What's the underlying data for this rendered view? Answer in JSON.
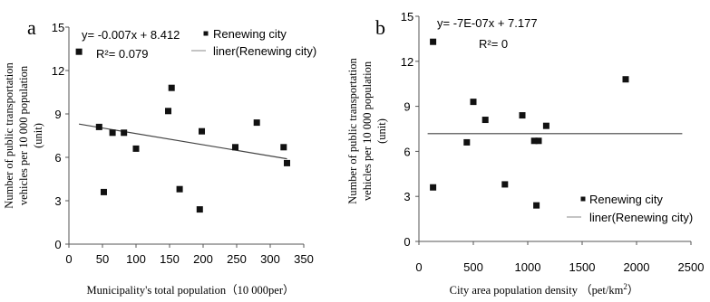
{
  "chart_data": [
    {
      "type": "scatter",
      "panel_label": "a",
      "ylabel_lines": [
        "Number of public transportation",
        "vehicles per 10 000 population",
        "(unit)"
      ],
      "xlabel": "Municipality's total population（10 000per）",
      "xlim": [
        0,
        350
      ],
      "ylim": [
        0,
        15
      ],
      "xticks": [
        0,
        50,
        100,
        150,
        200,
        250,
        300,
        350
      ],
      "yticks": [
        0,
        3,
        6,
        9,
        12,
        15
      ],
      "equation": "y= -0.007x + 8.412",
      "r_squared": "R²= 0.079",
      "series": [
        {
          "name": "Renewing city",
          "points": [
            {
              "x": 15,
              "y": 13.3
            },
            {
              "x": 45,
              "y": 8.1
            },
            {
              "x": 52,
              "y": 3.6
            },
            {
              "x": 65,
              "y": 7.7
            },
            {
              "x": 82,
              "y": 7.7
            },
            {
              "x": 100,
              "y": 6.6
            },
            {
              "x": 148,
              "y": 9.2
            },
            {
              "x": 153,
              "y": 10.8
            },
            {
              "x": 165,
              "y": 3.8
            },
            {
              "x": 195,
              "y": 2.4
            },
            {
              "x": 198,
              "y": 7.8
            },
            {
              "x": 248,
              "y": 6.7
            },
            {
              "x": 280,
              "y": 8.4
            },
            {
              "x": 320,
              "y": 6.7
            },
            {
              "x": 325,
              "y": 5.6
            }
          ]
        },
        {
          "name": "liner(Renewing city)",
          "type": "line",
          "points": [
            {
              "x": 15,
              "y": 8.3
            },
            {
              "x": 325,
              "y": 5.9
            }
          ]
        }
      ],
      "legend_position": "top-right"
    },
    {
      "type": "scatter",
      "panel_label": "b",
      "ylabel_lines": [
        "Number of public transportation",
        "vehicles per 10 000 population",
        "(unit)"
      ],
      "xlabel": "City area population density （pet/km",
      "xlabel_sup": "2",
      "xlabel_end": "）",
      "xlim": [
        0,
        2500
      ],
      "ylim": [
        0,
        15
      ],
      "xticks": [
        0,
        500,
        1000,
        1500,
        2000,
        2500
      ],
      "yticks": [
        0,
        3,
        6,
        9,
        12,
        15
      ],
      "equation": "y= -7E-07x + 7.177",
      "r_squared": "R²= 0",
      "series": [
        {
          "name": "Renewing city",
          "points": [
            {
              "x": 130,
              "y": 13.3
            },
            {
              "x": 130,
              "y": 3.6
            },
            {
              "x": 440,
              "y": 6.6
            },
            {
              "x": 500,
              "y": 9.3
            },
            {
              "x": 610,
              "y": 8.1
            },
            {
              "x": 790,
              "y": 3.8
            },
            {
              "x": 950,
              "y": 8.4
            },
            {
              "x": 1060,
              "y": 6.7
            },
            {
              "x": 1100,
              "y": 6.7
            },
            {
              "x": 1080,
              "y": 2.4
            },
            {
              "x": 1170,
              "y": 7.7
            },
            {
              "x": 1900,
              "y": 10.8
            }
          ]
        },
        {
          "name": "liner(Renewing city)",
          "type": "line",
          "points": [
            {
              "x": 80,
              "y": 7.18
            },
            {
              "x": 2420,
              "y": 7.18
            }
          ]
        }
      ],
      "legend_position": "bottom-right"
    }
  ]
}
